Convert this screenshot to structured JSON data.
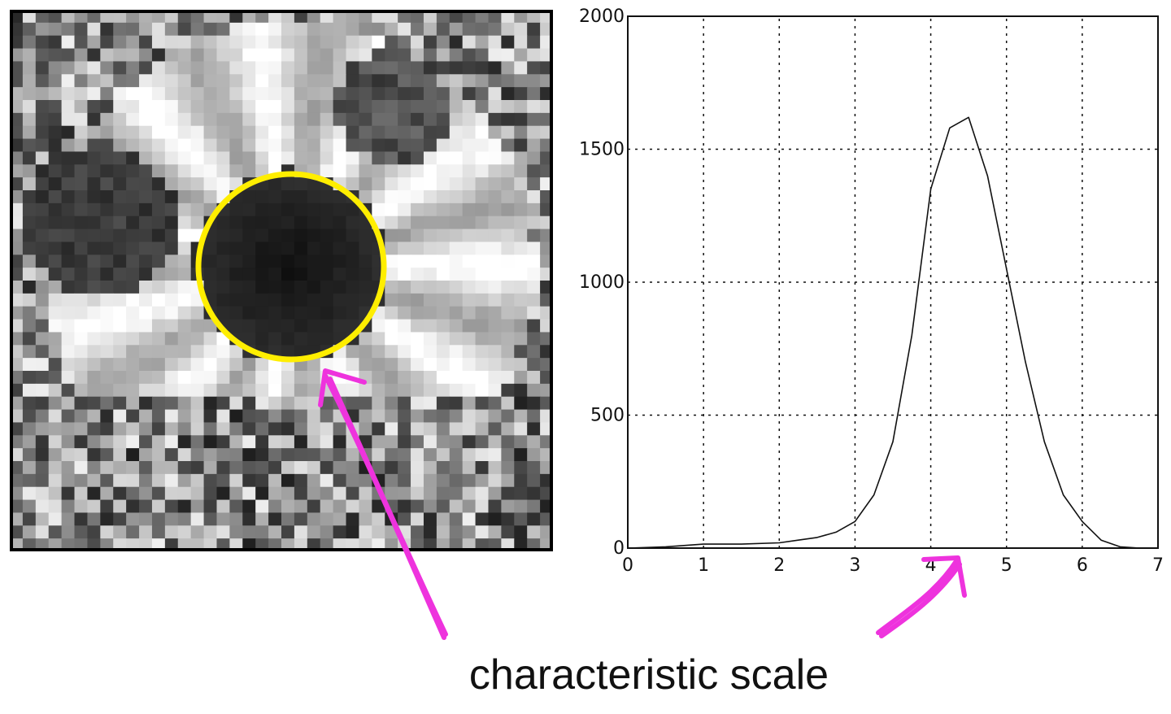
{
  "figure": {
    "caption": "characteristic scale",
    "colors": {
      "circle": "#ffee00",
      "arrow": "#ee33dd",
      "curve": "#111111",
      "grid": "#111111"
    }
  },
  "image_panel": {
    "content": "grayscale pixelated sunflower center",
    "marked_feature": "dark circular blob outlined with yellow circle"
  },
  "chart_data": {
    "type": "line",
    "title": "",
    "xlabel": "",
    "ylabel": "",
    "xlim": [
      0,
      7
    ],
    "ylim": [
      0,
      2000
    ],
    "xticks": [
      "0",
      "1",
      "2",
      "3",
      "4",
      "5",
      "6",
      "7"
    ],
    "yticks": [
      "0",
      "500",
      "1000",
      "1500",
      "2000"
    ],
    "grid": true,
    "grid_style": "dotted",
    "series": [
      {
        "x": [
          0,
          0.5,
          1,
          1.5,
          2,
          2.25,
          2.5,
          2.75,
          3,
          3.25,
          3.5,
          3.75,
          4,
          4.25,
          4.5,
          4.75,
          5,
          5.25,
          5.5,
          5.75,
          6,
          6.25,
          6.5,
          6.75
        ],
        "y": [
          0,
          5,
          15,
          15,
          20,
          30,
          40,
          60,
          100,
          200,
          400,
          800,
          1350,
          1580,
          1620,
          1400,
          1050,
          700,
          400,
          200,
          100,
          30,
          5,
          0
        ]
      }
    ]
  }
}
